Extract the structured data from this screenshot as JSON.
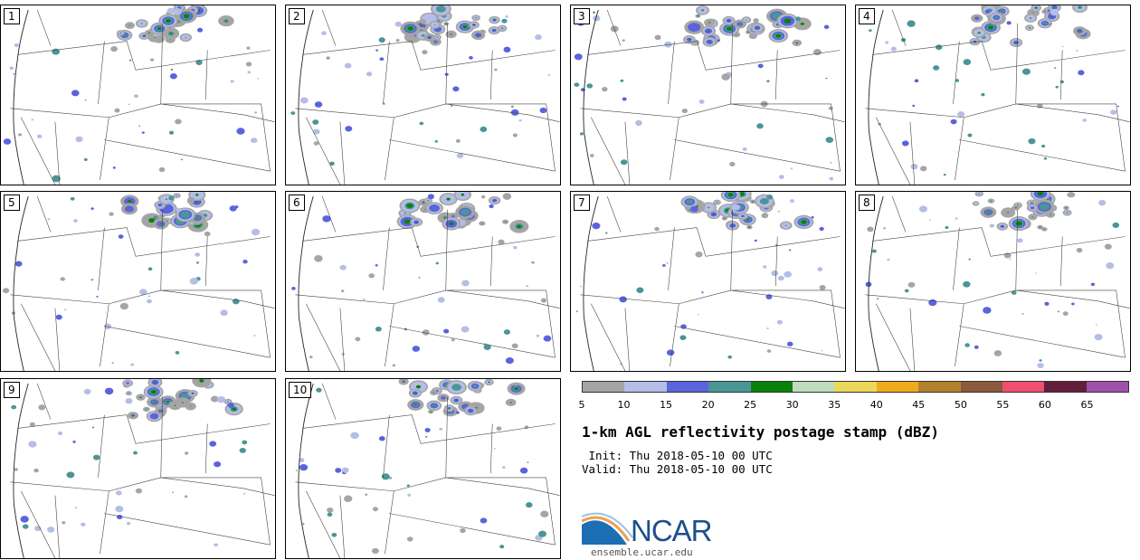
{
  "members": [
    "1",
    "2",
    "3",
    "4",
    "5",
    "6",
    "7",
    "8",
    "9",
    "10"
  ],
  "colorbar": {
    "colors": [
      "#a5a5a5",
      "#b4bee6",
      "#5a64dc",
      "#4a9696",
      "#0a820a",
      "#bedcbe",
      "#ebd75a",
      "#f0aa1e",
      "#b4822d",
      "#8c5a3c",
      "#f0506e",
      "#641e3c",
      "#a050aa"
    ],
    "ticks": [
      "5",
      "10",
      "15",
      "20",
      "25",
      "30",
      "35",
      "40",
      "45",
      "50",
      "55",
      "60",
      "65"
    ]
  },
  "title": "1-km AGL reflectivity postage stamp (dBZ)",
  "init": " Init: Thu 2018-05-10 00 UTC",
  "valid": "Valid: Thu 2018-05-10 00 UTC",
  "logo": {
    "text": "NCAR",
    "url": "ensemble.ucar.edu"
  }
}
